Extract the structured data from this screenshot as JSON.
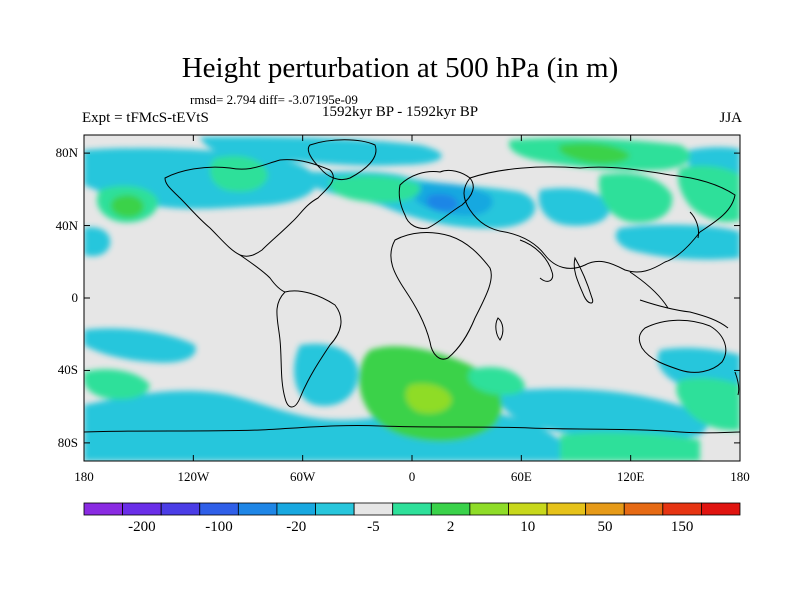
{
  "title": "Height perturbation at 500 hPa (in m)",
  "stats": "rmsd= 2.794 diff= -3.07195e-09",
  "experiment": "Expt = tFMcS-tEVtS",
  "period": "1592kyr BP - 1592kyr BP",
  "season": "JJA",
  "map": {
    "projection": "cylindrical equidistant",
    "lon_range": [
      -180,
      180
    ],
    "lat_range": [
      -90,
      90
    ],
    "x_ticks": [
      "180",
      "120W",
      "60W",
      "0",
      "60E",
      "120E",
      "180"
    ],
    "y_ticks": [
      "80N",
      "40N",
      "0",
      "40S",
      "80S"
    ],
    "background_color": "#e6e6e6",
    "coastline_color": "#000000"
  },
  "colorbar": {
    "labels": [
      "-200",
      "-100",
      "-20",
      "-5",
      "2",
      "10",
      "50",
      "150"
    ],
    "colors": [
      "#8a2be2",
      "#6a2ee8",
      "#4b3de6",
      "#2f5fe8",
      "#1f86e6",
      "#18a8e0",
      "#28c6dc",
      "#e6e6e6",
      "#2ee09a",
      "#3ad24a",
      "#8fdc28",
      "#c8d81c",
      "#e6c21a",
      "#e69a18",
      "#e66a14",
      "#e63412",
      "#e01410"
    ]
  }
}
